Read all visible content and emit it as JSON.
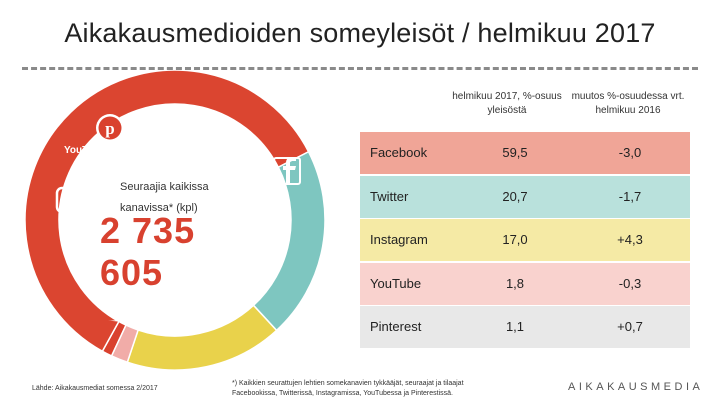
{
  "title": "Aikakausmedioiden someyleisöt / helmikuu 2017",
  "center": {
    "label": "Seuraajia kaikissa kanavissa* (kpl)",
    "value": "2 735 605"
  },
  "icons": {
    "youtube_logo": "YouTube"
  },
  "colors": {
    "Facebook": "#db4530",
    "Twitter": "#7ec6c0",
    "Instagram": "#e9d24b",
    "YouTube": "#f1aca8",
    "Pinterest": "#d9412e"
  },
  "chart_data": {
    "type": "table",
    "donut": {
      "type": "pie",
      "categories": [
        "Facebook",
        "Twitter",
        "Instagram",
        "YouTube",
        "Pinterest"
      ],
      "values": [
        59.5,
        20.7,
        17.0,
        1.8,
        1.1
      ]
    },
    "columns": [
      "",
      "helmikuu 2017, %-osuus yleisöstä",
      "muutos %-osuudessa vrt. helmikuu 2016"
    ],
    "rows": [
      {
        "channel": "Facebook",
        "share": "59,5",
        "change": "-3,0",
        "bg": "#f0a597"
      },
      {
        "channel": "Twitter",
        "share": "20,7",
        "change": "-1,7",
        "bg": "#b9e1dc"
      },
      {
        "channel": "Instagram",
        "share": "17,0",
        "change": "+4,3",
        "bg": "#f5eaa5"
      },
      {
        "channel": "YouTube",
        "share": "1,8",
        "change": "-0,3",
        "bg": "#f9d2ce"
      },
      {
        "channel": "Pinterest",
        "share": "1,1",
        "change": "+0,7",
        "bg": "#e8e8e8"
      }
    ]
  },
  "footer": {
    "source": "Lähde: Aikakausmediat somessa 2/2017",
    "note": "*) Kaikkien seurattujen lehtien somekanavien tykkääjät, seuraajat ja tilaajat Facebookissa, Twitterissä, Instagramissa, YouTubessa ja Pinterestissä.",
    "brand": "AIKAKAUSMEDIA"
  }
}
